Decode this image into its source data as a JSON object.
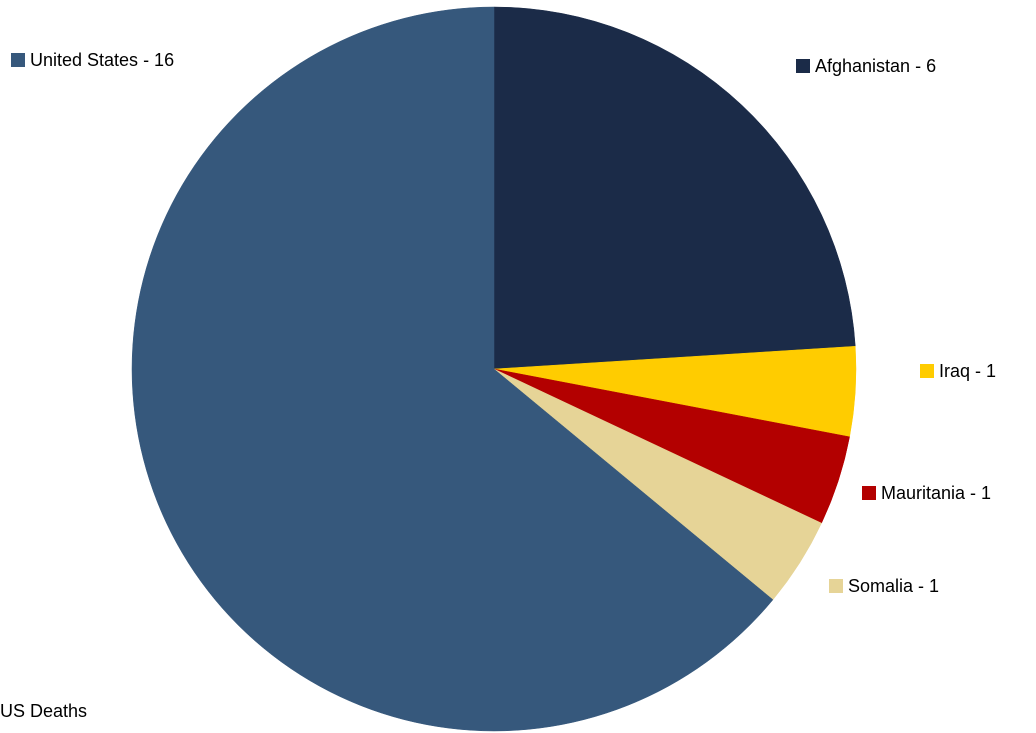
{
  "chart_data": {
    "type": "pie",
    "title": "",
    "slices": [
      {
        "label": "Afghanistan - 6",
        "value": 6,
        "color": "#1b2b48"
      },
      {
        "label": "Iraq - 1",
        "value": 1,
        "color": "#ffcc00"
      },
      {
        "label": "Mauritania - 1",
        "value": 1,
        "color": "#b30000"
      },
      {
        "label": "Somalia - 1",
        "value": 1,
        "color": "#e6d497"
      },
      {
        "label": "United States - 16",
        "value": 16,
        "color": "#36587c"
      }
    ]
  },
  "footer": {
    "text": "US Deaths"
  }
}
